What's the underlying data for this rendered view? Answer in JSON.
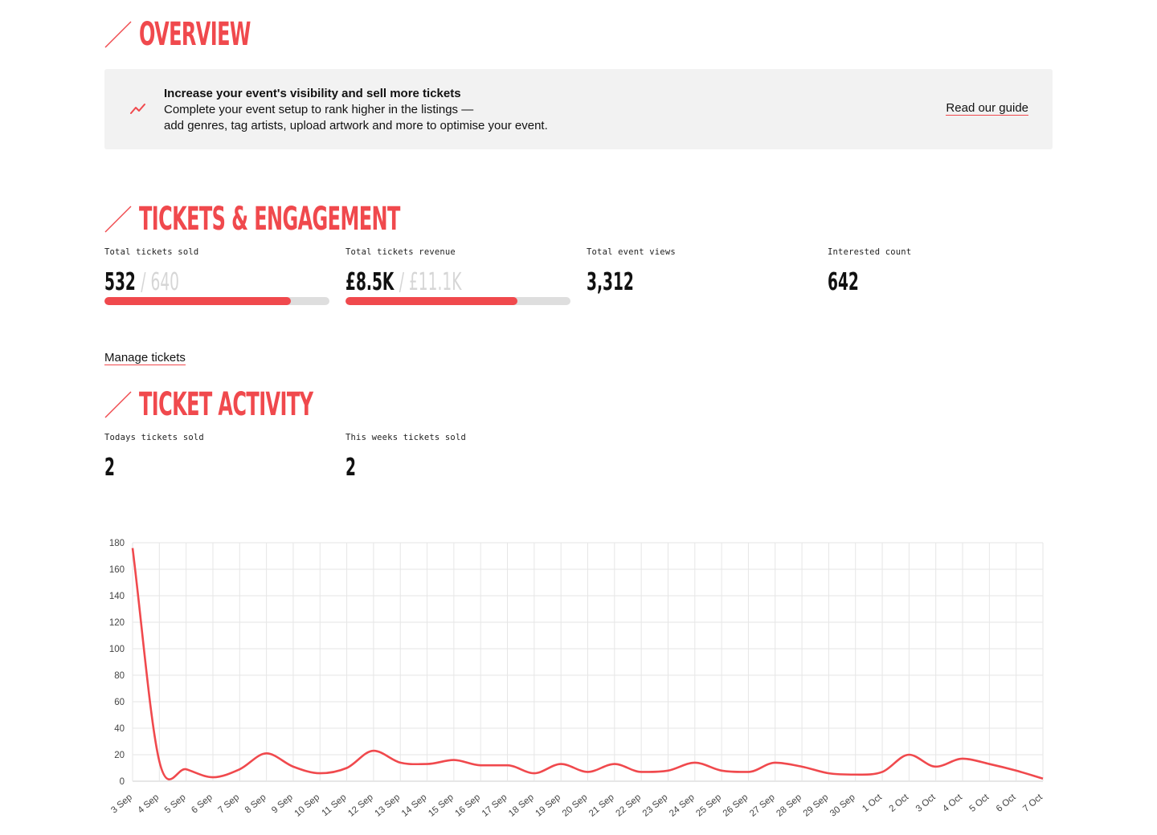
{
  "overview": {
    "title": "OVERVIEW"
  },
  "banner": {
    "title": "Increase your event's visibility and sell more tickets",
    "line1": "Complete your event setup to rank higher in the listings —",
    "line2": "add genres, tag artists, upload artwork and more to optimise your event.",
    "link": "Read our guide",
    "icon": "trending-up-icon",
    "accent": "#f0494d",
    "background": "#f2f2f2"
  },
  "engagement": {
    "title": "TICKETS & ENGAGEMENT",
    "stats": [
      {
        "label": "Total tickets sold",
        "value": "532",
        "total": "/ 640",
        "progress": 0.83
      },
      {
        "label": "Total tickets revenue",
        "value": "£8.5K",
        "total": "/ £11.1K",
        "progress": 0.766
      },
      {
        "label": "Total event views",
        "value": "3,312"
      },
      {
        "label": "Interested count",
        "value": "642"
      }
    ],
    "manage_link": "Manage tickets"
  },
  "activity": {
    "title": "TICKET ACTIVITY",
    "stats": [
      {
        "label": "Todays tickets sold",
        "value": "2"
      },
      {
        "label": "This weeks tickets sold",
        "value": "2"
      }
    ]
  },
  "chart_data": {
    "type": "line",
    "categories": [
      "3 Sep",
      "4 Sep",
      "5 Sep",
      "6 Sep",
      "7 Sep",
      "8 Sep",
      "9 Sep",
      "10 Sep",
      "11 Sep",
      "12 Sep",
      "13 Sep",
      "14 Sep",
      "15 Sep",
      "16 Sep",
      "17 Sep",
      "18 Sep",
      "19 Sep",
      "20 Sep",
      "21 Sep",
      "22 Sep",
      "23 Sep",
      "24 Sep",
      "25 Sep",
      "26 Sep",
      "27 Sep",
      "28 Sep",
      "29 Sep",
      "30 Sep",
      "1 Oct",
      "2 Oct",
      "3 Oct",
      "4 Oct",
      "5 Oct",
      "6 Oct",
      "7 Oct"
    ],
    "series": [
      {
        "values": [
          176,
          15,
          9,
          3,
          9,
          21,
          11,
          6,
          10,
          23,
          14,
          13,
          16,
          12,
          12,
          6,
          13,
          7,
          13,
          7,
          8,
          14,
          8,
          7,
          14,
          11,
          6,
          5,
          7,
          20,
          11,
          17,
          13,
          8,
          2
        ],
        "color": "#f0494d"
      }
    ],
    "yticks": [
      0,
      20,
      40,
      60,
      80,
      100,
      120,
      140,
      160,
      180
    ],
    "ylim": [
      0,
      180
    ],
    "grid": true,
    "legend": false
  }
}
